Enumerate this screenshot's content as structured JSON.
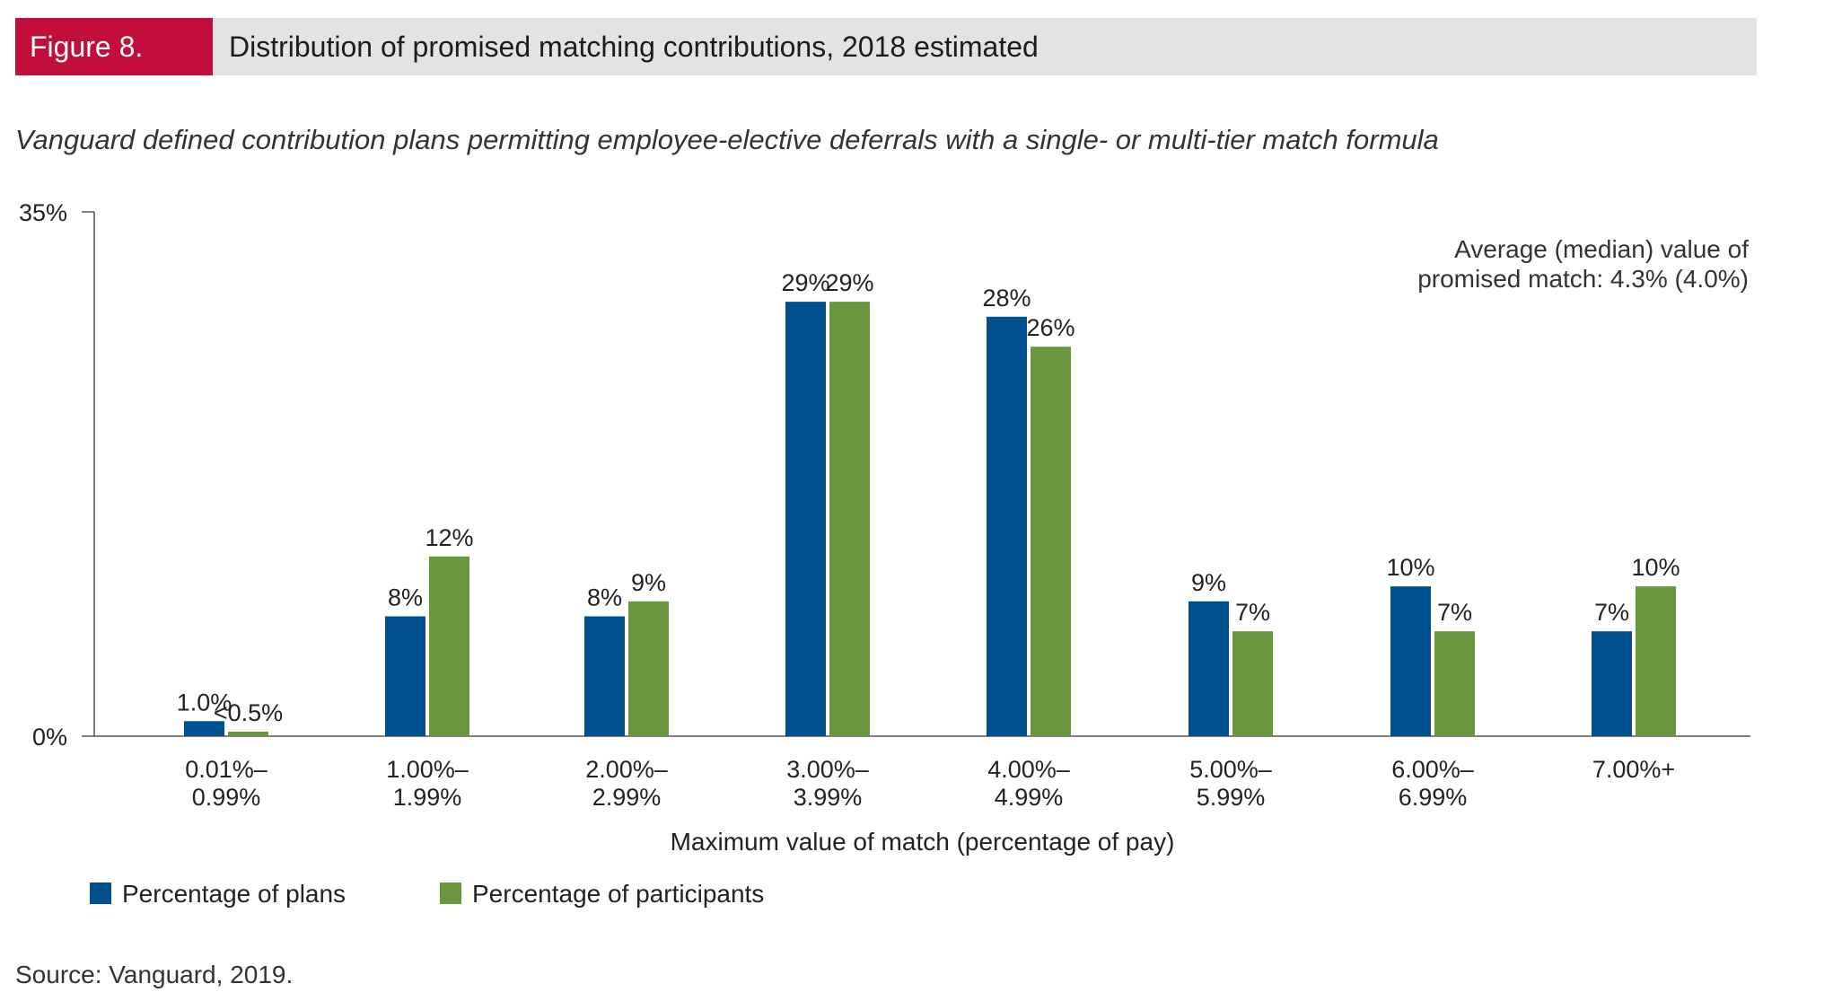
{
  "header": {
    "figure_label": "Figure 8.",
    "title": "Distribution of promised matching contributions, 2018 estimated"
  },
  "subtitle": "Vanguard defined contribution plans permitting employee-elective deferrals with a single- or multi-tier match formula",
  "source": "Source: Vanguard, 2019.",
  "colors": {
    "plans": "#004f8f",
    "participants": "#6a9640",
    "axis": "#555555",
    "header_bg": "#e3e3e5",
    "tag_bg": "#c20e3a"
  },
  "chart_data": {
    "type": "bar",
    "xlabel": "Maximum value of match (percentage of pay)",
    "ylabel": "",
    "ylim": [
      0,
      35
    ],
    "y_ticks": [
      {
        "value": 0,
        "label": "0%"
      },
      {
        "value": 35,
        "label": "35%"
      }
    ],
    "annotation": [
      "Average (median) value of",
      "promised match: 4.3% (4.0%)"
    ],
    "categories": [
      [
        "0.01%–",
        "0.99%"
      ],
      [
        "1.00%–",
        "1.99%"
      ],
      [
        "2.00%–",
        "2.99%"
      ],
      [
        "3.00%–",
        "3.99%"
      ],
      [
        "4.00%–",
        "4.99%"
      ],
      [
        "5.00%–",
        "5.99%"
      ],
      [
        "6.00%–",
        "6.99%"
      ],
      [
        "7.00%+"
      ]
    ],
    "series": [
      {
        "name": "Percentage of plans",
        "color": "#004f8f",
        "values": [
          1.0,
          8,
          8,
          29,
          28,
          9,
          10,
          7
        ],
        "labels": [
          "1.0%",
          "8%",
          "8%",
          "29%",
          "28%",
          "9%",
          "10%",
          "7%"
        ]
      },
      {
        "name": "Percentage of participants",
        "color": "#6a9640",
        "values": [
          0.3,
          12,
          9,
          29,
          26,
          7,
          7,
          10
        ],
        "labels": [
          "<0.5%",
          "12%",
          "9%",
          "29%",
          "26%",
          "7%",
          "7%",
          "10%"
        ]
      }
    ]
  }
}
